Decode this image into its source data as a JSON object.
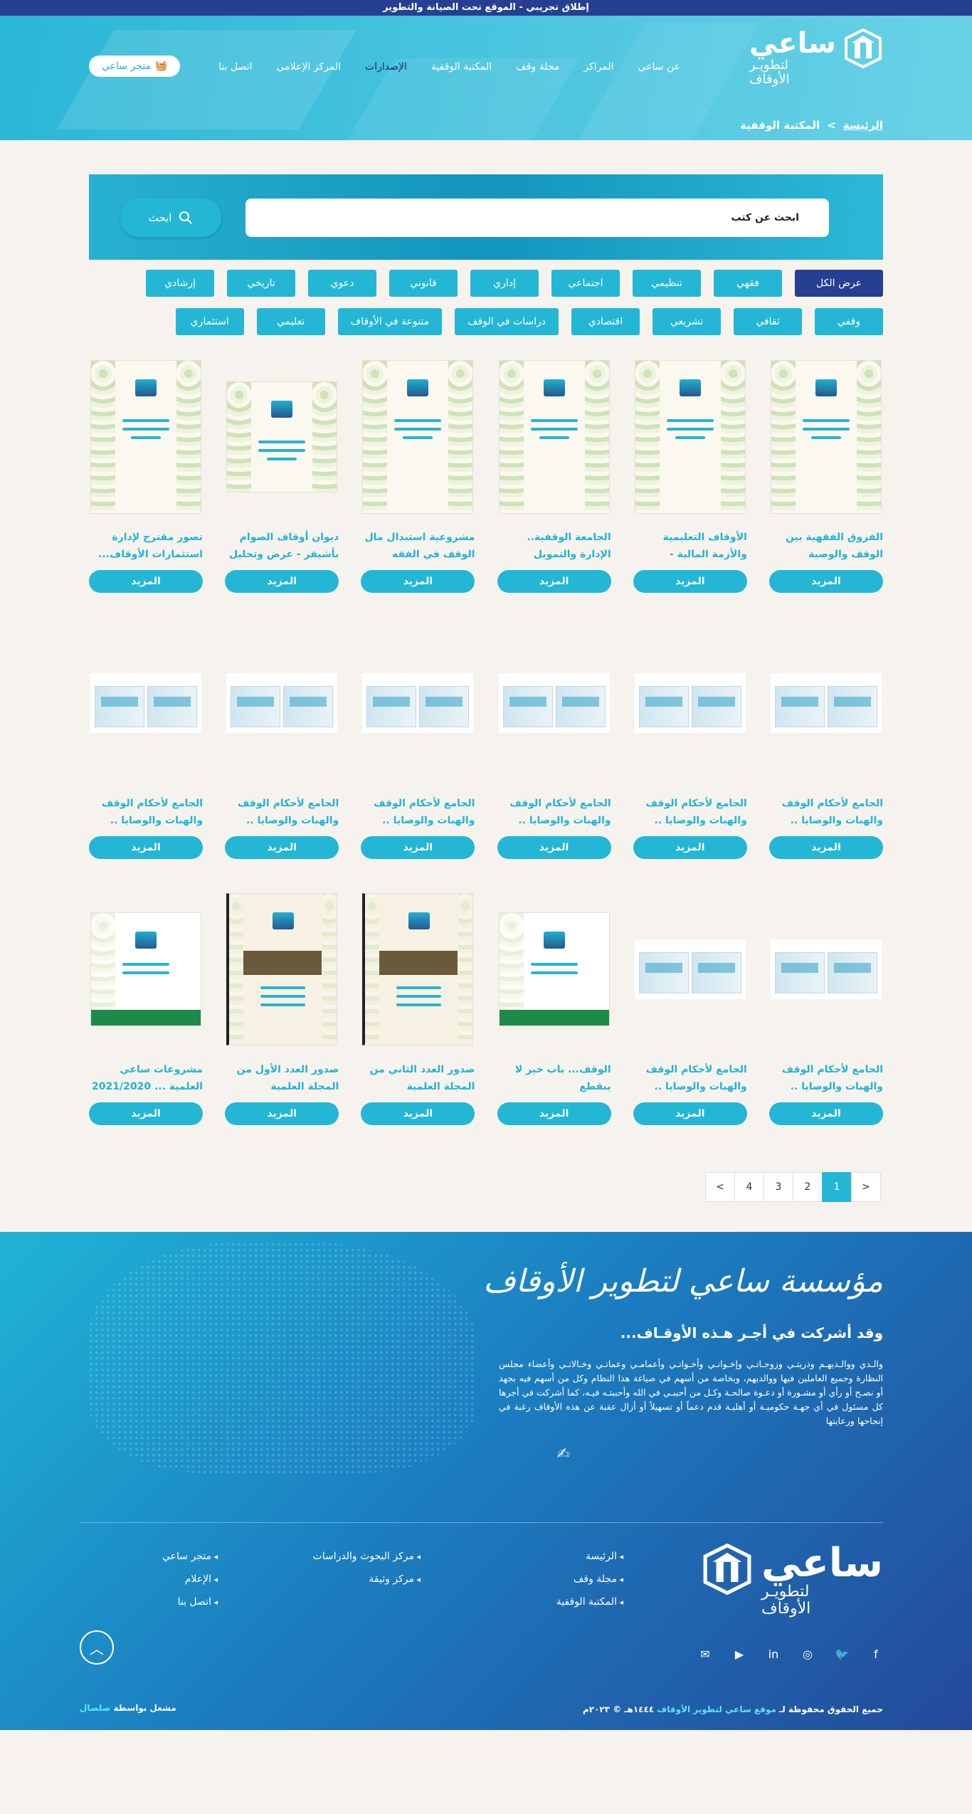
{
  "topbar": {
    "text": "إطلاق تجريبي - الموقع تحت الصيانة والتطوير"
  },
  "brand": {
    "name": "ساعي",
    "line1": "لتطويـر",
    "line2": "الأوقاف",
    "accent": "#24b6d5",
    "dark": "#273f92"
  },
  "nav": {
    "items": [
      "عن ساعي",
      "المراكز",
      "مجلة وقف",
      "المكتبة الوقفية",
      "الإصدارات",
      "المركز الإعلامي",
      "اتصل بنا"
    ],
    "active": "الإصدارات",
    "store": "متجر ساعي",
    "store_icon": "basket-icon"
  },
  "breadcrumb": {
    "home": "الرئيسة",
    "sep": ">",
    "current": "المكتبة الوقفية"
  },
  "search": {
    "placeholder": "ابحث عن كتب",
    "button": "ابحث",
    "icon": "search-icon"
  },
  "filters": [
    "عرض الكل",
    "فقهي",
    "تنظيمي",
    "اجتماعي",
    "إداري",
    "قانوني",
    "دعوي",
    "تاريخي",
    "إرشادي",
    "وقفي",
    "ثقافي",
    "تشريعي",
    "اقتصادي",
    "دراسات في الوقف",
    "متنوعة في الأوقاف",
    "تعليمي",
    "استثماري"
  ],
  "active_filter": "عرض الكل",
  "books": [
    {
      "title": "الفروق الفقهية بين الوقف والوصية",
      "thumb": "ornate"
    },
    {
      "title": "الأوقاف التعليمية والأزمة المالية - التكاليف...",
      "thumb": "ornate"
    },
    {
      "title": "الجامعة الوقفية.. الإدارة والتمويل والاستثمار",
      "thumb": "ornate"
    },
    {
      "title": "مشروعية استبدال مال الوقف في الفقه الإسلامي...",
      "thumb": "ornate"
    },
    {
      "title": "ديوان أوقاف الصوام بأشيقر - عرض وتحليل",
      "thumb": "ornate-small"
    },
    {
      "title": "تصور مقترح لإدارة استثمارات الأوقاف...",
      "thumb": "ornate"
    },
    {
      "title": "الجامع لأحكام الوقف والهبات والوصايا .. الجزء...",
      "thumb": "boxes"
    },
    {
      "title": "الجامع لأحكام الوقف والهبات والوصايا .. الجزء...",
      "thumb": "boxes"
    },
    {
      "title": "الجامع لأحكام الوقف والهبات والوصايا .. الجزء...",
      "thumb": "boxes"
    },
    {
      "title": "الجامع لأحكام الوقف والهبات والوصايا .. الجزء...",
      "thumb": "boxes"
    },
    {
      "title": "الجامع لأحكام الوقف والهبات والوصايا .. الجزء...",
      "thumb": "boxes"
    },
    {
      "title": "الجامع لأحكام الوقف والهبات والوصايا .. الجزء...",
      "thumb": "boxes"
    },
    {
      "title": "الجامع لأحكام الوقف والهبات والوصايا .. الجزء...",
      "thumb": "boxes"
    },
    {
      "title": "الجامع لأحكام الوقف والهبات والوصايا .. الجزء...",
      "thumb": "boxes"
    },
    {
      "title": "الوقف... باب خير لا ينقطع",
      "thumb": "green"
    },
    {
      "title": "صدور العدد الثاني من المجلة العلمية المحكمة...",
      "thumb": "dark"
    },
    {
      "title": "صدور العدد الأول من المجلة العلمية المحكمة...",
      "thumb": "dark-plain"
    },
    {
      "title": "مشروعات ساعي العلمية ... 2021/2020",
      "thumb": "green"
    }
  ],
  "more_label": "المزيد",
  "pagination": {
    "prev": "<",
    "pages": [
      "1",
      "2",
      "3",
      "4"
    ],
    "current": "1",
    "next": ">"
  },
  "footer": {
    "heading": "مؤسسة ساعي لتطوير الأوقاف",
    "subheading": "وقد أشركت في أجـر هـذه الأوقـاف...",
    "paragraph": "والـدي ووالـديهـم وذريتـي وزوجـاتـي وإخـوانـي وأخـواتـي وأعمامـي وعماتـي وخـالاتـي وأعضاء مجلس النظارة وجميع العاملين فيها ووالديهم، وبخاصة من أسهم في صياغة هذا النظام وكل من أسهم فيه بجهد أو نصـح أو رأي أو مشـورة أو دعـوة صالحـة وكـل من أحببـي في الله وأحببتـه فيـه، كما أشركت في أجرها كل مسئول في أي جهـة حكوميـة أو أهليـة قدم دعماً أو تسهيلاً أو أزال عقبة عن هذه الأوقاف رغبة في إنجاحها ورعايتها",
    "links_col1": [
      "الرئيسة",
      "مجلة وقف",
      "المكتبة الوقفية"
    ],
    "links_col2": [
      "مركز البحوث والدراسات",
      "مركز وثيقة"
    ],
    "links_col3": [
      "متجر ساعي",
      "الإعلام",
      "اتصل بنا"
    ],
    "social_icons": [
      "facebook-icon",
      "twitter-icon",
      "instagram-icon",
      "linkedin-icon",
      "youtube-icon",
      "mail-icon"
    ],
    "copyright_prefix": "جميع الحقوق محفوظة لـ",
    "copyright_site": "موقع ساعي لتطوير الأوقاف",
    "copyright_year": "١٤٤٤هـ © ٢٠٢٣م",
    "credit_prefix": "مشغل بواسطة",
    "credit_name": "صلصال"
  }
}
